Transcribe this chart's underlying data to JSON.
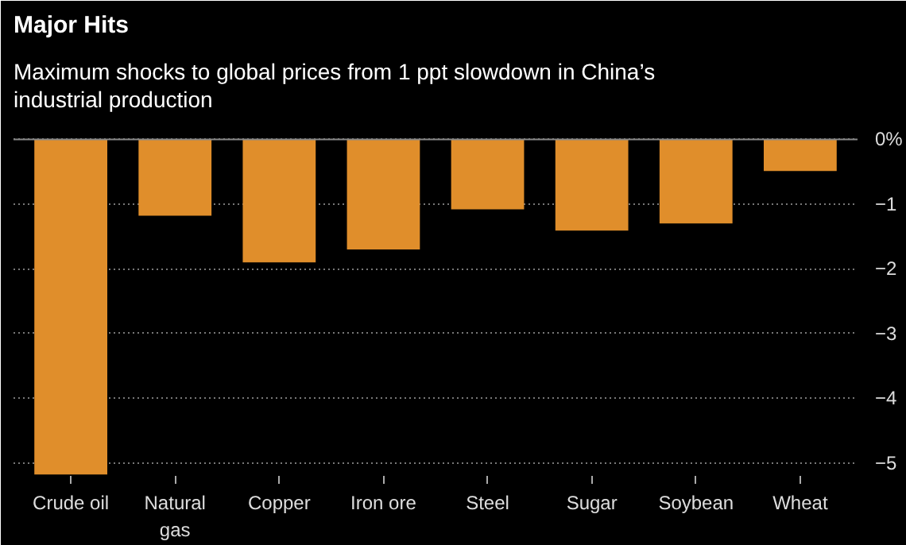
{
  "chart_data": {
    "type": "bar",
    "title": "Major Hits",
    "subtitle": "Maximum shocks to global prices from 1 ppt slowdown in China’s industrial production",
    "categories": [
      "Crude oil",
      "Natural\ngas",
      "Copper",
      "Iron ore",
      "Steel",
      "Sugar",
      "Soybean",
      "Wheat"
    ],
    "values": [
      -5.18,
      -1.18,
      -1.9,
      -1.7,
      -1.08,
      -1.41,
      -1.3,
      -0.49
    ],
    "color": "#e08e2b",
    "ylim": [
      -5.2,
      0.3
    ],
    "yticks": [
      {
        "value": 0,
        "label": "0%"
      },
      -1,
      -2,
      -3,
      -4,
      -5
    ],
    "grid": "y"
  }
}
